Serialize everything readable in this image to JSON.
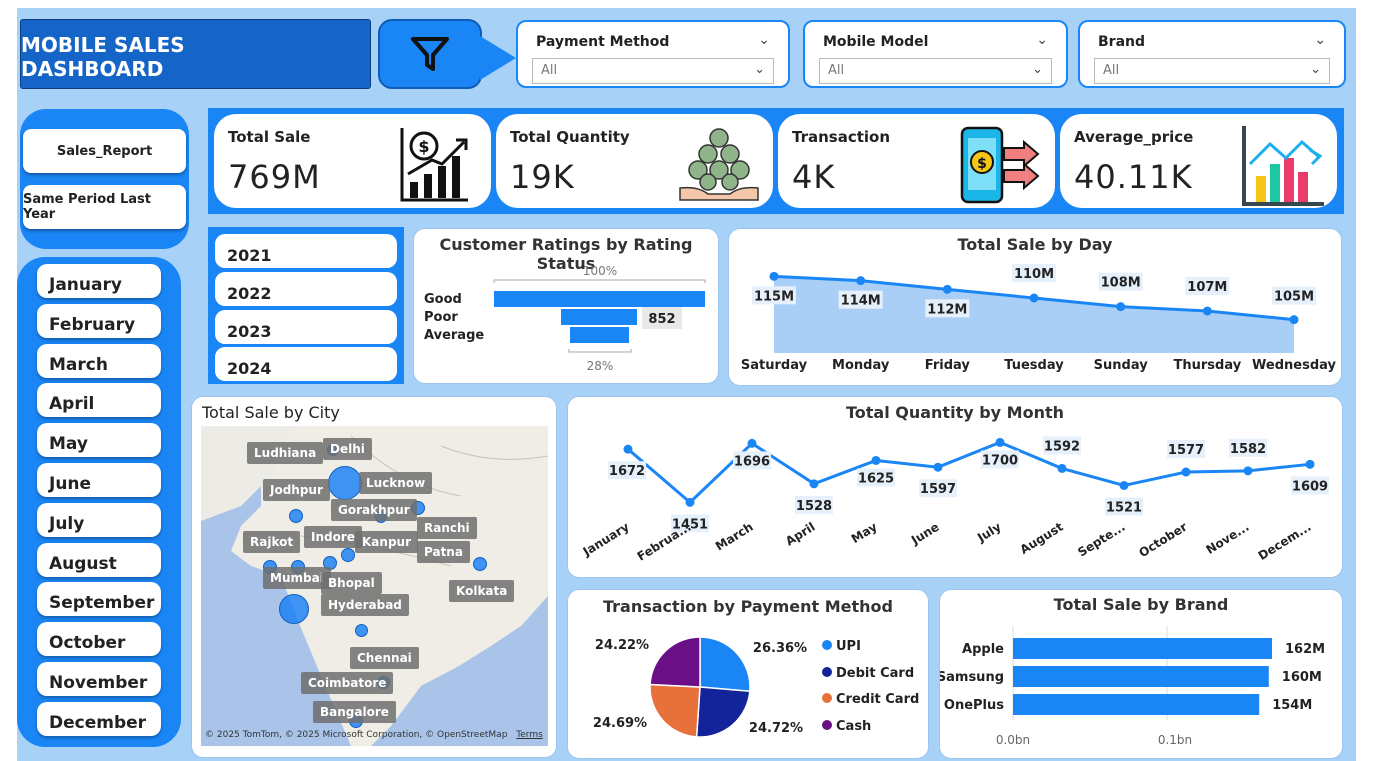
{
  "header": {
    "title": "MOBILE SALES DASHBOARD"
  },
  "slicers": [
    {
      "label": "Payment Method",
      "value": "All"
    },
    {
      "label": "Mobile Model",
      "value": "All"
    },
    {
      "label": "Brand",
      "value": "All"
    }
  ],
  "nav": {
    "sales_report": "Sales_Report",
    "same_period": "Same Period Last Year"
  },
  "months": [
    "January",
    "February",
    "March",
    "April",
    "May",
    "June",
    "July",
    "August",
    "September",
    "October",
    "November",
    "December"
  ],
  "years": [
    "2021",
    "2022",
    "2023",
    "2024"
  ],
  "kpis": [
    {
      "label": "Total Sale",
      "value": "769M",
      "icon": "revenue-growth-icon"
    },
    {
      "label": "Total Quantity",
      "value": "19K",
      "icon": "coin-stack-icon"
    },
    {
      "label": "Transaction",
      "value": "4K",
      "icon": "mobile-payment-icon"
    },
    {
      "label": "Average_price",
      "value": "40.11K",
      "icon": "bar-chart-icon"
    }
  ],
  "ratings": {
    "title": "Customer Ratings by Rating Status",
    "top_pct": "100%",
    "bottom_pct": "28%",
    "categories": [
      "Good",
      "Poor",
      "Average"
    ],
    "label": "852"
  },
  "day_chart": {
    "title": "Total Sale by Day",
    "categories": [
      "Saturday",
      "Monday",
      "Friday",
      "Tuesday",
      "Sunday",
      "Thursday",
      "Wednesday"
    ],
    "labels": [
      "115M",
      "114M",
      "112M",
      "110M",
      "108M",
      "107M",
      "105M"
    ],
    "values": [
      115,
      114,
      112,
      110,
      108,
      107,
      105
    ]
  },
  "city_map": {
    "title": "Total Sale by City",
    "cities": [
      "Ludhiana",
      "Delhi",
      "Jodhpur",
      "Lucknow",
      "Gorakhpur",
      "Ranchi",
      "Rajkot",
      "Indore",
      "Kanpur",
      "Patna",
      "Mumbai",
      "Bhopal",
      "Kolkata",
      "Hyderabad",
      "Chennai",
      "Coimbatore",
      "Bangalore"
    ],
    "copyright": "© 2025 TomTom, © 2025 Microsoft Corporation, © OpenStreetMap",
    "terms": "Terms"
  },
  "month_chart": {
    "title": "Total Quantity by Month",
    "categories": [
      "January",
      "Februa...",
      "March",
      "April",
      "May",
      "June",
      "July",
      "August",
      "Septe...",
      "October",
      "Nove...",
      "Decem..."
    ],
    "values": [
      1672,
      1451,
      1696,
      1528,
      1625,
      1597,
      1700,
      1592,
      1521,
      1577,
      1582,
      1609
    ]
  },
  "payment_chart": {
    "title": "Transaction by Payment Method",
    "legend": [
      "UPI",
      "Debit Card",
      "Credit Card",
      "Cash"
    ],
    "values": [
      26.36,
      24.72,
      24.69,
      24.22
    ],
    "labels": [
      "26.36%",
      "24.72%",
      "24.69%",
      "24.22%"
    ],
    "colors": [
      "#1a86f5",
      "#13249a",
      "#e8703a",
      "#6a0f86"
    ]
  },
  "brand_chart": {
    "title": "Total Sale by Brand",
    "categories": [
      "Apple",
      "Samsung",
      "OnePlus"
    ],
    "labels": [
      "162M",
      "160M",
      "154M"
    ],
    "values": [
      162,
      160,
      154
    ],
    "axis": [
      "0.0bn",
      "0.1bn"
    ]
  },
  "chart_data": [
    {
      "type": "bar",
      "title": "Customer Ratings by Rating Status",
      "categories": [
        "Good",
        "Poor",
        "Average"
      ],
      "values": [
        100,
        36,
        28
      ],
      "annotations": [
        "852"
      ]
    },
    {
      "type": "area",
      "title": "Total Sale by Day",
      "categories": [
        "Saturday",
        "Monday",
        "Friday",
        "Tuesday",
        "Sunday",
        "Thursday",
        "Wednesday"
      ],
      "values": [
        115,
        114,
        112,
        110,
        108,
        107,
        105
      ]
    },
    {
      "type": "line",
      "title": "Total Quantity by Month",
      "categories": [
        "January",
        "February",
        "March",
        "April",
        "May",
        "June",
        "July",
        "August",
        "September",
        "October",
        "November",
        "December"
      ],
      "values": [
        1672,
        1451,
        1696,
        1528,
        1625,
        1597,
        1700,
        1592,
        1521,
        1577,
        1582,
        1609
      ]
    },
    {
      "type": "pie",
      "title": "Transaction by Payment Method",
      "categories": [
        "UPI",
        "Debit Card",
        "Credit Card",
        "Cash"
      ],
      "values": [
        26.36,
        24.72,
        24.69,
        24.22
      ]
    },
    {
      "type": "bar",
      "title": "Total Sale by Brand",
      "categories": [
        "Apple",
        "Samsung",
        "OnePlus"
      ],
      "values": [
        162,
        160,
        154
      ]
    }
  ]
}
